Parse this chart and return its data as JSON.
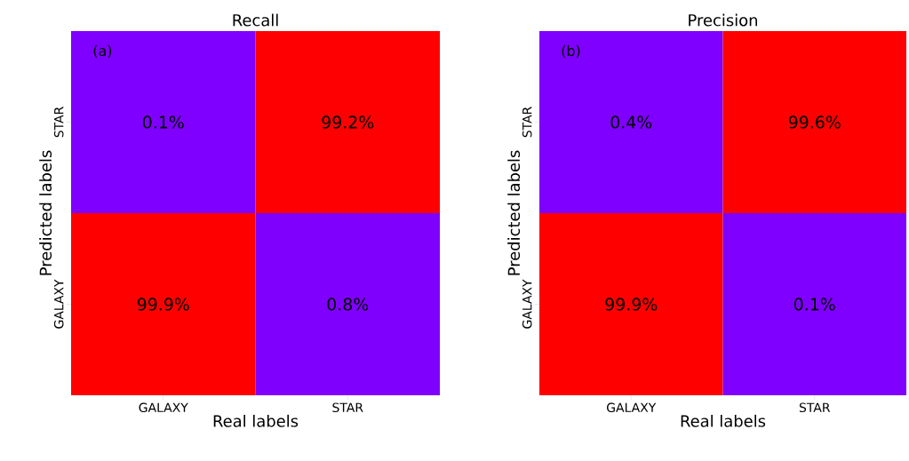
{
  "chart_data": [
    {
      "type": "heatmap",
      "title": "Recall",
      "xlabel": "Real labels",
      "ylabel": "Predicted labels",
      "categories": [
        "GALAXY",
        "STAR"
      ],
      "y_categories": [
        "STAR",
        "GALAXY"
      ],
      "cells": [
        [
          0.1,
          99.2
        ],
        [
          99.9,
          0.8
        ]
      ],
      "cell_labels": [
        [
          "0.1%",
          "99.2%"
        ],
        [
          "99.9%",
          "0.8%"
        ]
      ],
      "colors": [
        "#7f00ff",
        "#ff0000"
      ],
      "annotations": [
        "(a)"
      ]
    },
    {
      "type": "heatmap",
      "title": "Precision",
      "xlabel": "Real labels",
      "ylabel": "Predicted labels",
      "categories": [
        "GALAXY",
        "STAR"
      ],
      "y_categories": [
        "STAR",
        "GALAXY"
      ],
      "cells": [
        [
          0.4,
          99.6
        ],
        [
          99.9,
          0.1
        ]
      ],
      "cell_labels": [
        [
          "0.4%",
          "99.6%"
        ],
        [
          "99.9%",
          "0.1%"
        ]
      ],
      "colors": [
        "#7f00ff",
        "#ff0000"
      ],
      "annotations": [
        "(b)"
      ]
    }
  ]
}
